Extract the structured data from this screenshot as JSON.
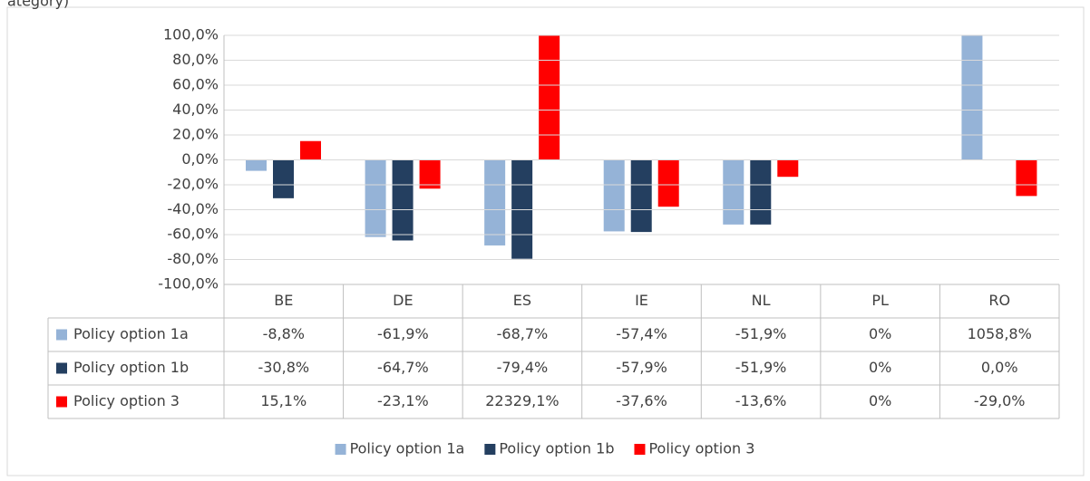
{
  "chart_data": {
    "type": "bar",
    "caption": "ategory)",
    "categories": [
      "BE",
      "DE",
      "ES",
      "IE",
      "NL",
      "PL",
      "RO"
    ],
    "series": [
      {
        "name": "Policy option 1a",
        "color": "#95b3d7",
        "values": [
          -8.8,
          -61.9,
          -68.7,
          -57.4,
          -51.9,
          0,
          1058.8
        ],
        "value_labels": [
          "-8,8%",
          "-61,9%",
          "-68,7%",
          "-57,4%",
          "-51,9%",
          "0%",
          "1058,8%"
        ]
      },
      {
        "name": "Policy option 1b",
        "color": "#243f60",
        "values": [
          -30.8,
          -64.7,
          -79.4,
          -57.9,
          -51.9,
          0,
          0.0
        ],
        "value_labels": [
          "-30,8%",
          "-64,7%",
          "-79,4%",
          "-57,9%",
          "-51,9%",
          "0%",
          "0,0%"
        ]
      },
      {
        "name": "Policy option 3",
        "color": "#ff0000",
        "values": [
          15.1,
          -23.1,
          22329.1,
          -37.6,
          -13.6,
          0,
          -29.0
        ],
        "value_labels": [
          "15,1%",
          "-23,1%",
          "22329,1%",
          "-37,6%",
          "-13,6%",
          "0%",
          "-29,0%"
        ]
      }
    ],
    "ylim": [
      -100,
      100
    ],
    "yticks": [
      {
        "value": -100,
        "label": "-100,0%"
      },
      {
        "value": -80,
        "label": "-80,0%"
      },
      {
        "value": -60,
        "label": "-60,0%"
      },
      {
        "value": -40,
        "label": "-40,0%"
      },
      {
        "value": -20,
        "label": "-20,0%"
      },
      {
        "value": 0,
        "label": "0,0%"
      },
      {
        "value": 20,
        "label": "20,0%"
      },
      {
        "value": 40,
        "label": "40,0%"
      },
      {
        "value": 60,
        "label": "60,0%"
      },
      {
        "value": 80,
        "label": "80,0%"
      },
      {
        "value": 100,
        "label": "100,0%"
      }
    ],
    "grid": true,
    "legend": "bottom"
  }
}
